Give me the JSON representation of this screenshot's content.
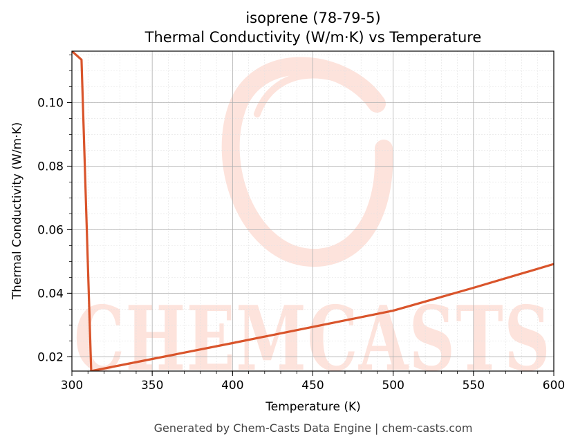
{
  "chart_data": {
    "type": "line",
    "title": "isoprene (78-79-5)",
    "subtitle": "Thermal Conductivity (W/m·K) vs Temperature",
    "xlabel": "Temperature (K)",
    "ylabel": "Thermal Conductivity (W/m·K)",
    "xlim": [
      300,
      600
    ],
    "ylim": [
      0.0155,
      0.1162
    ],
    "x_ticks": [
      300,
      350,
      400,
      450,
      500,
      550,
      600
    ],
    "y_ticks": [
      0.02,
      0.04,
      0.06,
      0.08,
      0.1
    ],
    "y_tick_labels": [
      "0.02",
      "0.04",
      "0.06",
      "0.08",
      "0.10"
    ],
    "grid": true,
    "line_color": "#d9542b",
    "series": [
      {
        "x": [
          300,
          306,
          312,
          350,
          400,
          450,
          500,
          550,
          600
        ],
        "y": [
          0.1162,
          0.1135,
          0.0155,
          0.0193,
          0.0243,
          0.0294,
          0.0345,
          0.0417,
          0.0492
        ]
      }
    ]
  },
  "watermark": {
    "text": "CHEMCASTS",
    "color": "#fde3dc"
  },
  "footer": "Generated by Chem-Casts Data Engine | chem-casts.com"
}
